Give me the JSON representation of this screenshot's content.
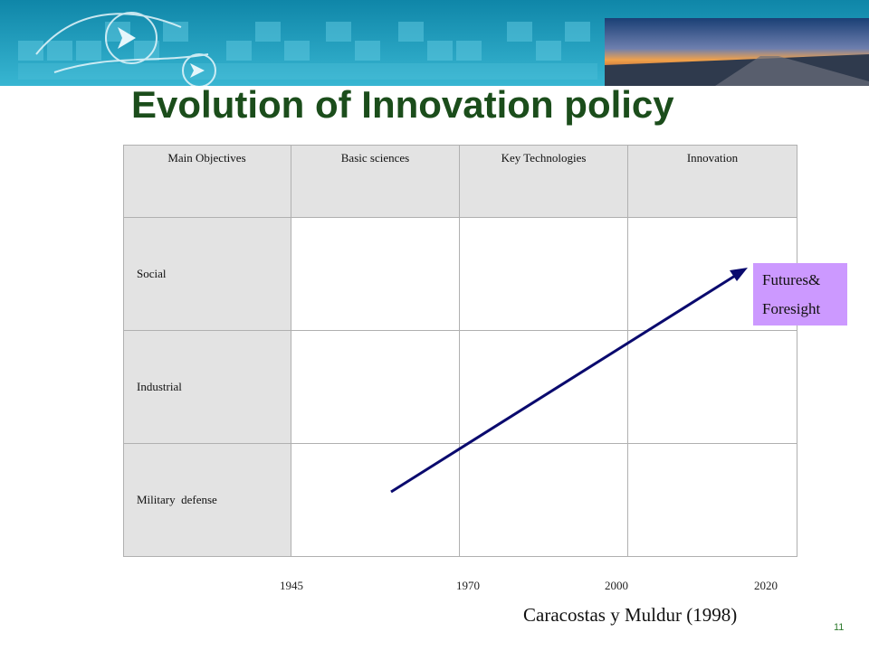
{
  "title": "Evolution of Innovation policy",
  "table": {
    "header": [
      "Main Objectives",
      "Basic sciences",
      "Key Technologies",
      "Innovation"
    ],
    "rows": [
      "Social",
      "Industrial",
      "Military  defense"
    ]
  },
  "years": [
    "1945",
    "1970",
    "2000",
    "2020"
  ],
  "callout": {
    "line1": "Futures&",
    "line2": "Foresight",
    "color": "#cc99ff"
  },
  "arrow_color": "#0a0a6e",
  "citation": "Caracostas y Muldur (1998)",
  "page_number": "11",
  "colors": {
    "title": "#1b4d1b",
    "banner": "#2aa6c4",
    "header_fill": "#e3e3e3"
  }
}
